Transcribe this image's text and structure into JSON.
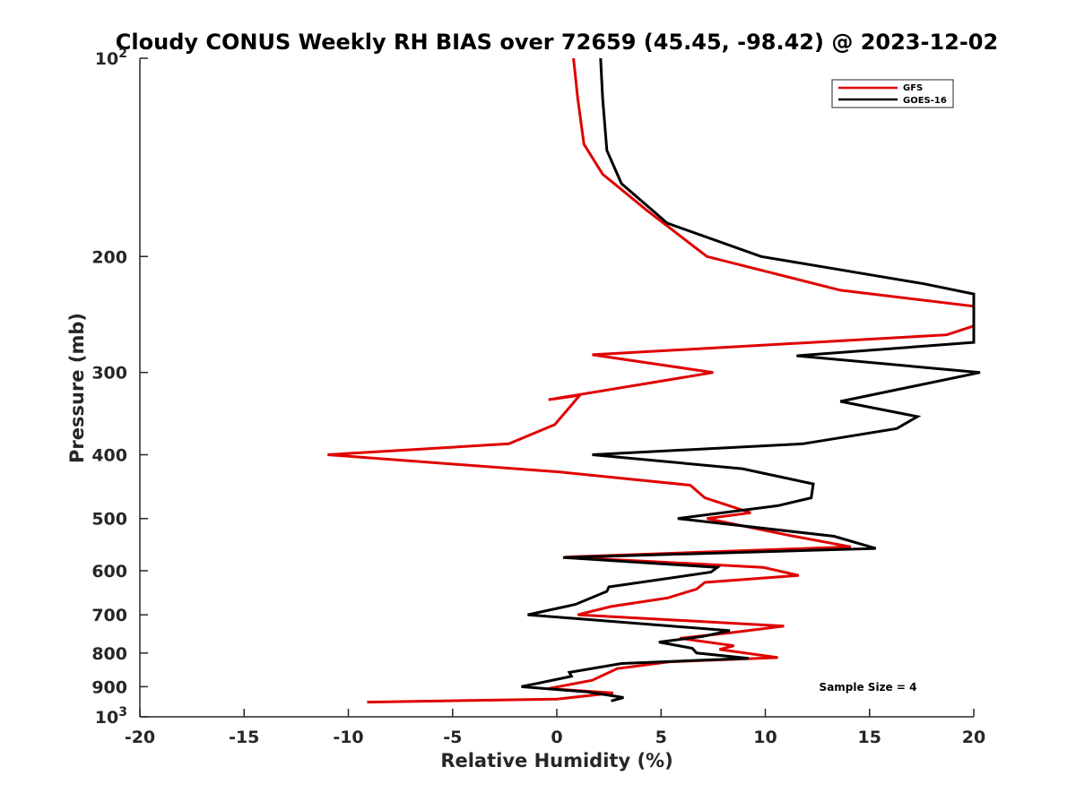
{
  "chart_data": {
    "type": "line",
    "title": "Cloudy CONUS Weekly RH BIAS over 72659 (45.45, -98.42) @ 2023-12-02",
    "xlabel": "Relative Humidity (%)",
    "ylabel": "Pressure (mb)",
    "xlim": [
      -20,
      20
    ],
    "ylim": [
      100,
      1000
    ],
    "y_scale": "log",
    "y_reversed": true,
    "grid": false,
    "legend_position": "top-right",
    "x_ticks": [
      "-20",
      "-15",
      "-10",
      "-5",
      "0",
      "5",
      "10",
      "15",
      "20"
    ],
    "y_ticks": [
      {
        "value": 100,
        "base": "10",
        "exp": "2"
      },
      {
        "value": 200,
        "label": "200"
      },
      {
        "value": 300,
        "label": "300"
      },
      {
        "value": 400,
        "label": "400"
      },
      {
        "value": 500,
        "label": "500"
      },
      {
        "value": 600,
        "label": "600"
      },
      {
        "value": 700,
        "label": "700"
      },
      {
        "value": 800,
        "label": "800"
      },
      {
        "value": 900,
        "label": "900"
      },
      {
        "value": 1000,
        "base": "10",
        "exp": "3"
      }
    ],
    "annotation": "Sample Size = 4",
    "series": [
      {
        "name": "GFS",
        "color": "#e00000",
        "points": [
          [
            0.8,
            100
          ],
          [
            1.0,
            115
          ],
          [
            1.3,
            135
          ],
          [
            2.2,
            150
          ],
          [
            4.3,
            170
          ],
          [
            7.2,
            200
          ],
          [
            13.6,
            225
          ],
          [
            20,
            238
          ],
          [
            20,
            255
          ],
          [
            18.7,
            263
          ],
          [
            1.7,
            282
          ],
          [
            7.5,
            300
          ],
          [
            -0.4,
            330
          ],
          [
            1.1,
            325
          ],
          [
            -0.1,
            360
          ],
          [
            -2.3,
            385
          ],
          [
            -11,
            400
          ],
          [
            0.2,
            425
          ],
          [
            6.4,
            445
          ],
          [
            7.1,
            465
          ],
          [
            9.3,
            490
          ],
          [
            7.2,
            500
          ],
          [
            11.1,
            530
          ],
          [
            14.1,
            552
          ],
          [
            0.4,
            572
          ],
          [
            9.9,
            593
          ],
          [
            11.6,
            610
          ],
          [
            7.1,
            625
          ],
          [
            6.7,
            640
          ],
          [
            5.3,
            660
          ],
          [
            2.6,
            680
          ],
          [
            1.0,
            700
          ],
          [
            10.9,
            728
          ],
          [
            8.4,
            745
          ],
          [
            5.9,
            760
          ],
          [
            8.5,
            780
          ],
          [
            7.8,
            790
          ],
          [
            10.6,
            813
          ],
          [
            5.4,
            825
          ],
          [
            2.9,
            845
          ],
          [
            1.7,
            880
          ],
          [
            -0.4,
            906
          ],
          [
            2.7,
            920
          ],
          [
            0.0,
            940
          ],
          [
            -9.1,
            950
          ]
        ]
      },
      {
        "name": "GOES-16",
        "color": "#000000",
        "points": [
          [
            2.1,
            100
          ],
          [
            2.2,
            115
          ],
          [
            2.4,
            138
          ],
          [
            3.1,
            155
          ],
          [
            5.3,
            178
          ],
          [
            9.8,
            200
          ],
          [
            17.6,
            220
          ],
          [
            20,
            228
          ],
          [
            20,
            270
          ],
          [
            11.5,
            283
          ],
          [
            20.3,
            300
          ],
          [
            13.6,
            332
          ],
          [
            17.3,
            350
          ],
          [
            16.3,
            365
          ],
          [
            11.8,
            385
          ],
          [
            1.7,
            400
          ],
          [
            8.9,
            420
          ],
          [
            12.3,
            443
          ],
          [
            12.2,
            465
          ],
          [
            10.6,
            478
          ],
          [
            5.8,
            500
          ],
          [
            13.3,
            532
          ],
          [
            15.3,
            555
          ],
          [
            0.3,
            573
          ],
          [
            7.7,
            593
          ],
          [
            7.4,
            603
          ],
          [
            2.5,
            635
          ],
          [
            2.4,
            645
          ],
          [
            0.9,
            675
          ],
          [
            -1.4,
            700
          ],
          [
            8.3,
            740
          ],
          [
            7.0,
            755
          ],
          [
            4.9,
            770
          ],
          [
            6.5,
            787
          ],
          [
            6.7,
            800
          ],
          [
            9.2,
            815
          ],
          [
            3.1,
            830
          ],
          [
            0.6,
            856
          ],
          [
            0.7,
            868
          ],
          [
            -1.7,
            900
          ],
          [
            1.5,
            917
          ],
          [
            3.2,
            935
          ],
          [
            2.6,
            946
          ]
        ]
      }
    ]
  }
}
